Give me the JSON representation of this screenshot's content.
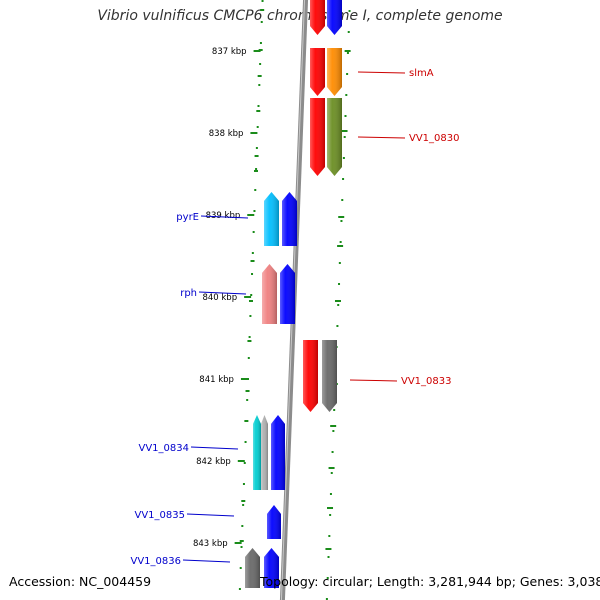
{
  "title": "Vibrio vulnificus CMCP6 chromosome I, complete genome",
  "accession_label": "Accession: NC_004459",
  "summary_label": "Topology: circular; Length: 3,281,944 bp; Genes: 3,038",
  "colors": {
    "backbone": "#8c8c8c",
    "tick": "#1a8c1a",
    "forward_label": "#0000cc",
    "reverse_label": "#cc0000"
  },
  "ticks": [
    "837 kbp",
    "838 kbp",
    "839 kbp",
    "840 kbp",
    "841 kbp",
    "842 kbp",
    "843 kbp"
  ],
  "labels": [
    {
      "text": "slmA",
      "strand": "reverse"
    },
    {
      "text": "VV1_0830",
      "strand": "reverse"
    },
    {
      "text": "pyrE",
      "strand": "forward"
    },
    {
      "text": "rph",
      "strand": "forward"
    },
    {
      "text": "VV1_0833",
      "strand": "reverse"
    },
    {
      "text": "VV1_0834",
      "strand": "forward"
    },
    {
      "text": "VV1_0835",
      "strand": "forward"
    },
    {
      "text": "VV1_0836",
      "strand": "forward"
    }
  ],
  "features": [
    {
      "strand": "reverse",
      "colors": [
        "#ff0000",
        "#0000ff"
      ]
    },
    {
      "strand": "reverse",
      "colors": [
        "#ff0000",
        "#ff8c00"
      ]
    },
    {
      "strand": "reverse",
      "colors": [
        "#ff0000",
        "#6b8e23"
      ]
    },
    {
      "strand": "forward",
      "colors": [
        "#00bfff",
        "#0000ff"
      ]
    },
    {
      "strand": "forward",
      "colors": [
        "#f08080",
        "#0000ff"
      ]
    },
    {
      "strand": "reverse",
      "colors": [
        "#ff0000",
        "#696969"
      ]
    },
    {
      "strand": "forward",
      "colors": [
        "#00ced1",
        "#b0b0b0",
        "#0000ff"
      ]
    },
    {
      "strand": "forward",
      "colors": [
        "#0000ff"
      ]
    },
    {
      "strand": "forward",
      "colors": [
        "#696969",
        "#0000ff"
      ]
    }
  ]
}
